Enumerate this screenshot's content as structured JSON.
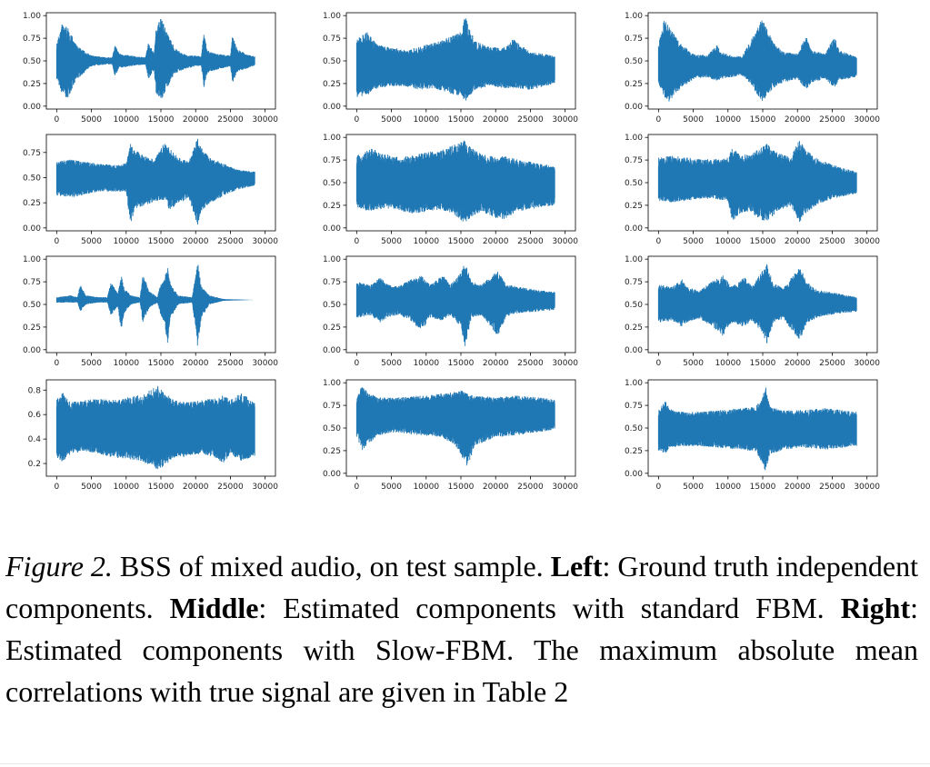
{
  "colors": {
    "waveform": "#1f77b4",
    "axis": "#000000",
    "text": "#222222"
  },
  "chart_data": [
    {
      "type": "line",
      "panel": "left",
      "row": 1,
      "xlim": [
        0,
        30000
      ],
      "ylim": [
        0,
        1
      ],
      "x_ticks": [
        "0",
        "5000",
        "10000",
        "15000",
        "20000",
        "25000",
        "30000"
      ],
      "y_ticks": [
        "0.00",
        "0.25",
        "0.50",
        "0.75",
        "1.00"
      ],
      "n_samples": 28500,
      "envelope": {
        "center": 0.5,
        "x": [
          0,
          800,
          1500,
          3000,
          5000,
          7000,
          8000,
          8400,
          9000,
          10500,
          11500,
          12800,
          13200,
          14000,
          14300,
          15000,
          16500,
          17000,
          18200,
          19000,
          20000,
          20800,
          21200,
          21600,
          22000,
          23000,
          25000,
          25300,
          26000,
          27500,
          28500
        ],
        "lower": [
          0.3,
          0.12,
          0.08,
          0.3,
          0.44,
          0.46,
          0.46,
          0.32,
          0.42,
          0.44,
          0.45,
          0.46,
          0.3,
          0.4,
          0.15,
          0.05,
          0.3,
          0.36,
          0.4,
          0.42,
          0.44,
          0.45,
          0.2,
          0.35,
          0.38,
          0.4,
          0.44,
          0.24,
          0.38,
          0.42,
          0.45
        ],
        "upper": [
          0.7,
          0.92,
          0.88,
          0.66,
          0.56,
          0.54,
          0.54,
          0.68,
          0.58,
          0.56,
          0.55,
          0.54,
          0.72,
          0.58,
          0.85,
          0.98,
          0.72,
          0.64,
          0.58,
          0.56,
          0.56,
          0.55,
          0.82,
          0.64,
          0.6,
          0.58,
          0.56,
          0.8,
          0.63,
          0.57,
          0.55
        ]
      }
    },
    {
      "type": "line",
      "panel": "middle",
      "row": 1,
      "xlim": [
        0,
        30000
      ],
      "ylim": [
        0,
        1
      ],
      "x_ticks": [
        "0",
        "5000",
        "10000",
        "15000",
        "20000",
        "25000",
        "30000"
      ],
      "y_ticks": [
        "0.00",
        "0.25",
        "0.50",
        "0.75",
        "1.00"
      ],
      "n_samples": 28500,
      "envelope": {
        "center": 0.42,
        "x": [
          0,
          1500,
          3000,
          5000,
          7000,
          9000,
          11000,
          13000,
          15000,
          15600,
          17000,
          19000,
          21000,
          22500,
          25000,
          27000,
          28500
        ],
        "lower": [
          0.1,
          0.12,
          0.2,
          0.22,
          0.22,
          0.18,
          0.2,
          0.15,
          0.1,
          0.05,
          0.18,
          0.22,
          0.2,
          0.2,
          0.18,
          0.22,
          0.24
        ],
        "upper": [
          0.75,
          0.82,
          0.68,
          0.65,
          0.62,
          0.66,
          0.7,
          0.75,
          0.82,
          1.0,
          0.72,
          0.66,
          0.64,
          0.74,
          0.6,
          0.58,
          0.55
        ]
      }
    },
    {
      "type": "line",
      "panel": "right",
      "row": 1,
      "xlim": [
        0,
        30000
      ],
      "ylim": [
        0,
        1
      ],
      "x_ticks": [
        "0",
        "5000",
        "10000",
        "15000",
        "20000",
        "25000",
        "30000"
      ],
      "y_ticks": [
        "0.00",
        "0.25",
        "0.50",
        "0.75",
        "1.00"
      ],
      "n_samples": 28500,
      "envelope": {
        "center": 0.45,
        "x": [
          0,
          800,
          1500,
          3000,
          5000,
          7000,
          8400,
          9000,
          10500,
          12000,
          13200,
          14000,
          15000,
          16500,
          18000,
          20000,
          21200,
          22000,
          24000,
          25300,
          26000,
          28500
        ],
        "lower": [
          0.25,
          0.1,
          0.05,
          0.18,
          0.3,
          0.32,
          0.28,
          0.3,
          0.32,
          0.34,
          0.25,
          0.15,
          0.05,
          0.2,
          0.26,
          0.3,
          0.18,
          0.26,
          0.3,
          0.2,
          0.28,
          0.32
        ],
        "upper": [
          0.7,
          0.95,
          0.9,
          0.7,
          0.58,
          0.56,
          0.68,
          0.6,
          0.56,
          0.55,
          0.72,
          0.82,
          0.98,
          0.7,
          0.6,
          0.58,
          0.78,
          0.62,
          0.58,
          0.78,
          0.62,
          0.55
        ]
      }
    },
    {
      "type": "line",
      "panel": "left",
      "row": 2,
      "xlim": [
        0,
        30000
      ],
      "ylim": [
        0,
        0.9
      ],
      "x_ticks": [
        "0",
        "5000",
        "10000",
        "15000",
        "20000",
        "25000",
        "30000"
      ],
      "y_ticks": [
        "0.00",
        "0.25",
        "0.50",
        "0.75"
      ],
      "n_samples": 28500,
      "envelope": {
        "center": 0.5,
        "x": [
          0,
          2000,
          4000,
          6000,
          8000,
          10000,
          10600,
          11200,
          12500,
          14000,
          15600,
          16200,
          17500,
          19000,
          20300,
          20800,
          22000,
          24000,
          26000,
          28500
        ],
        "lower": [
          0.32,
          0.3,
          0.33,
          0.36,
          0.36,
          0.36,
          0.02,
          0.18,
          0.22,
          0.26,
          0.28,
          0.18,
          0.24,
          0.3,
          0.02,
          0.16,
          0.24,
          0.32,
          0.38,
          0.42
        ],
        "upper": [
          0.66,
          0.68,
          0.66,
          0.64,
          0.63,
          0.64,
          0.84,
          0.78,
          0.72,
          0.68,
          0.86,
          0.8,
          0.7,
          0.66,
          0.9,
          0.8,
          0.7,
          0.64,
          0.58,
          0.56
        ]
      }
    },
    {
      "type": "line",
      "panel": "middle",
      "row": 2,
      "xlim": [
        0,
        30000
      ],
      "ylim": [
        0,
        1
      ],
      "x_ticks": [
        "0",
        "5000",
        "10000",
        "15000",
        "20000",
        "25000",
        "30000"
      ],
      "y_ticks": [
        "0.00",
        "0.25",
        "0.50",
        "0.75",
        "1.00"
      ],
      "n_samples": 28500,
      "envelope": {
        "center": 0.48,
        "x": [
          0,
          2000,
          4000,
          6000,
          8000,
          10000,
          12000,
          14000,
          15500,
          16500,
          18000,
          20000,
          21000,
          23000,
          26000,
          28500
        ],
        "lower": [
          0.22,
          0.18,
          0.22,
          0.2,
          0.15,
          0.18,
          0.2,
          0.15,
          0.05,
          0.12,
          0.18,
          0.1,
          0.08,
          0.18,
          0.22,
          0.25
        ],
        "upper": [
          0.8,
          0.88,
          0.82,
          0.78,
          0.8,
          0.84,
          0.85,
          0.92,
          0.97,
          0.88,
          0.82,
          0.78,
          0.8,
          0.76,
          0.72,
          0.68
        ]
      }
    },
    {
      "type": "line",
      "panel": "right",
      "row": 2,
      "xlim": [
        0,
        30000
      ],
      "ylim": [
        0,
        1
      ],
      "x_ticks": [
        "0",
        "5000",
        "10000",
        "15000",
        "20000",
        "25000",
        "30000"
      ],
      "y_ticks": [
        "0.00",
        "0.25",
        "0.50",
        "0.75",
        "1.00"
      ],
      "n_samples": 28500,
      "envelope": {
        "center": 0.5,
        "x": [
          0,
          2000,
          4000,
          6000,
          8000,
          10000,
          10600,
          11500,
          13000,
          15000,
          15600,
          17000,
          19000,
          20300,
          21000,
          23000,
          25000,
          28500
        ],
        "lower": [
          0.3,
          0.28,
          0.3,
          0.32,
          0.32,
          0.3,
          0.05,
          0.15,
          0.18,
          0.08,
          0.05,
          0.18,
          0.24,
          0.04,
          0.15,
          0.26,
          0.32,
          0.38
        ],
        "upper": [
          0.78,
          0.8,
          0.78,
          0.76,
          0.76,
          0.78,
          0.88,
          0.84,
          0.8,
          0.9,
          0.93,
          0.84,
          0.78,
          0.98,
          0.88,
          0.76,
          0.7,
          0.62
        ]
      }
    },
    {
      "type": "line",
      "panel": "left",
      "row": 3,
      "xlim": [
        0,
        30000
      ],
      "ylim": [
        0,
        1
      ],
      "x_ticks": [
        "0",
        "5000",
        "10000",
        "15000",
        "20000",
        "25000",
        "30000"
      ],
      "y_ticks": [
        "0.00",
        "0.25",
        "0.50",
        "0.75",
        "1.00"
      ],
      "n_samples": 28500,
      "envelope": {
        "center": 0.55,
        "x": [
          0,
          2000,
          3000,
          3400,
          4200,
          6000,
          7300,
          7800,
          8800,
          9300,
          9700,
          10700,
          12000,
          12400,
          13300,
          14500,
          14900,
          15500,
          16000,
          16400,
          17500,
          19500,
          20300,
          20800,
          22000,
          24000,
          28500
        ],
        "lower": [
          0.52,
          0.52,
          0.52,
          0.42,
          0.5,
          0.52,
          0.52,
          0.38,
          0.48,
          0.2,
          0.4,
          0.5,
          0.52,
          0.3,
          0.46,
          0.52,
          0.4,
          0.3,
          0.05,
          0.35,
          0.5,
          0.52,
          0.02,
          0.35,
          0.5,
          0.54,
          0.55
        ],
        "upper": [
          0.58,
          0.6,
          0.58,
          0.72,
          0.6,
          0.58,
          0.58,
          0.75,
          0.62,
          0.82,
          0.68,
          0.6,
          0.58,
          0.85,
          0.65,
          0.58,
          0.72,
          0.8,
          0.92,
          0.72,
          0.6,
          0.58,
          0.98,
          0.7,
          0.6,
          0.56,
          0.55
        ]
      }
    },
    {
      "type": "line",
      "panel": "middle",
      "row": 3,
      "xlim": [
        0,
        30000
      ],
      "ylim": [
        0,
        1
      ],
      "x_ticks": [
        "0",
        "5000",
        "10000",
        "15000",
        "20000",
        "25000",
        "30000"
      ],
      "y_ticks": [
        "0.00",
        "0.25",
        "0.50",
        "0.75",
        "1.00"
      ],
      "n_samples": 28500,
      "envelope": {
        "center": 0.55,
        "x": [
          0,
          2000,
          3400,
          4500,
          6000,
          7800,
          9300,
          10500,
          12400,
          13500,
          15000,
          15600,
          16500,
          18000,
          20300,
          21500,
          23000,
          26000,
          28500
        ],
        "lower": [
          0.35,
          0.38,
          0.3,
          0.36,
          0.38,
          0.32,
          0.2,
          0.35,
          0.32,
          0.38,
          0.25,
          0.02,
          0.35,
          0.38,
          0.15,
          0.36,
          0.4,
          0.42,
          0.44
        ],
        "upper": [
          0.75,
          0.72,
          0.8,
          0.72,
          0.7,
          0.78,
          0.82,
          0.72,
          0.82,
          0.72,
          0.85,
          0.98,
          0.75,
          0.72,
          0.88,
          0.72,
          0.7,
          0.66,
          0.64
        ]
      }
    },
    {
      "type": "line",
      "panel": "right",
      "row": 3,
      "xlim": [
        0,
        30000
      ],
      "ylim": [
        0,
        1
      ],
      "x_ticks": [
        "0",
        "5000",
        "10000",
        "15000",
        "20000",
        "25000",
        "30000"
      ],
      "y_ticks": [
        "0.00",
        "0.25",
        "0.50",
        "0.75",
        "1.00"
      ],
      "n_samples": 28500,
      "envelope": {
        "center": 0.5,
        "x": [
          0,
          2000,
          3400,
          4500,
          6000,
          7800,
          9300,
          10500,
          12400,
          13500,
          15000,
          15600,
          16500,
          18000,
          20300,
          21500,
          23000,
          26000,
          28500
        ],
        "lower": [
          0.3,
          0.32,
          0.25,
          0.32,
          0.34,
          0.25,
          0.15,
          0.3,
          0.25,
          0.32,
          0.18,
          0.06,
          0.3,
          0.34,
          0.1,
          0.3,
          0.36,
          0.4,
          0.42
        ],
        "upper": [
          0.72,
          0.7,
          0.78,
          0.68,
          0.66,
          0.76,
          0.82,
          0.7,
          0.8,
          0.7,
          0.88,
          0.95,
          0.74,
          0.68,
          0.92,
          0.74,
          0.66,
          0.62,
          0.58
        ]
      }
    },
    {
      "type": "line",
      "panel": "left",
      "row": 4,
      "xlim": [
        0,
        30000
      ],
      "ylim": [
        0.12,
        0.86
      ],
      "x_ticks": [
        "0",
        "5000",
        "10000",
        "15000",
        "20000",
        "25000",
        "30000"
      ],
      "y_ticks": [
        "0.2",
        "0.4",
        "0.6",
        "0.8"
      ],
      "n_samples": 28500,
      "envelope": {
        "center": 0.48,
        "x": [
          0,
          1000,
          2000,
          4000,
          6000,
          8000,
          10000,
          12000,
          13500,
          14500,
          15500,
          17000,
          19000,
          21000,
          23000,
          24000,
          25000,
          26500,
          28500
        ],
        "lower": [
          0.25,
          0.2,
          0.28,
          0.3,
          0.28,
          0.25,
          0.24,
          0.22,
          0.18,
          0.15,
          0.18,
          0.24,
          0.26,
          0.28,
          0.24,
          0.2,
          0.28,
          0.22,
          0.26
        ],
        "upper": [
          0.74,
          0.78,
          0.7,
          0.72,
          0.73,
          0.72,
          0.74,
          0.76,
          0.8,
          0.84,
          0.78,
          0.72,
          0.7,
          0.72,
          0.74,
          0.76,
          0.72,
          0.78,
          0.7
        ]
      }
    },
    {
      "type": "line",
      "panel": "middle",
      "row": 4,
      "xlim": [
        0,
        30000
      ],
      "ylim": [
        0,
        1
      ],
      "x_ticks": [
        "0",
        "5000",
        "10000",
        "15000",
        "20000",
        "25000",
        "30000"
      ],
      "y_ticks": [
        "0.00",
        "0.25",
        "0.50",
        "0.75",
        "1.00"
      ],
      "n_samples": 28500,
      "envelope": {
        "center": 0.65,
        "x": [
          0,
          800,
          1500,
          3000,
          6000,
          9000,
          12000,
          14000,
          15000,
          16000,
          17000,
          20000,
          23000,
          26000,
          28500
        ],
        "lower": [
          0.4,
          0.25,
          0.3,
          0.42,
          0.45,
          0.42,
          0.4,
          0.32,
          0.2,
          0.05,
          0.3,
          0.4,
          0.42,
          0.45,
          0.48
        ],
        "upper": [
          0.85,
          0.98,
          0.9,
          0.84,
          0.84,
          0.86,
          0.88,
          0.9,
          0.92,
          0.88,
          0.86,
          0.84,
          0.86,
          0.84,
          0.82
        ]
      }
    },
    {
      "type": "line",
      "panel": "right",
      "row": 4,
      "xlim": [
        0,
        30000
      ],
      "ylim": [
        0,
        1
      ],
      "x_ticks": [
        "0",
        "5000",
        "10000",
        "15000",
        "20000",
        "25000",
        "30000"
      ],
      "y_ticks": [
        "0.00",
        "0.25",
        "0.50",
        "0.75",
        "1.00"
      ],
      "n_samples": 28500,
      "envelope": {
        "center": 0.48,
        "x": [
          0,
          1000,
          1600,
          3000,
          6000,
          9000,
          12000,
          14000,
          15000,
          15400,
          16000,
          18000,
          21000,
          24000,
          28500
        ],
        "lower": [
          0.25,
          0.22,
          0.28,
          0.3,
          0.3,
          0.28,
          0.26,
          0.24,
          0.1,
          0.02,
          0.2,
          0.26,
          0.28,
          0.26,
          0.3
        ],
        "upper": [
          0.7,
          0.8,
          0.72,
          0.68,
          0.68,
          0.7,
          0.72,
          0.74,
          0.85,
          1.0,
          0.74,
          0.7,
          0.7,
          0.72,
          0.68
        ]
      }
    }
  ],
  "caption": {
    "figure_label": "Figure 2.",
    "text_1": " BSS of mixed audio, on test sample. ",
    "left_label": "Left",
    "text_2": ": Ground truth independent components. ",
    "middle_label": "Middle",
    "text_3": ": Estimated components with standard FBM. ",
    "right_label": "Right",
    "text_4": ": Estimated components with Slow-FBM. The maximum absolute mean correlations with true signal are given in Table 2"
  }
}
